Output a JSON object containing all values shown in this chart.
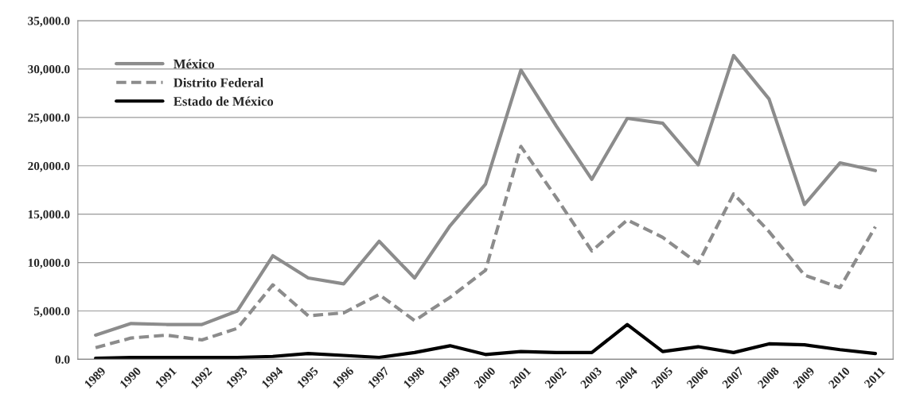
{
  "chart_data": {
    "type": "line",
    "categories": [
      "1989",
      "1990",
      "1991",
      "1992",
      "1993",
      "1994",
      "1995",
      "1996",
      "1997",
      "1998",
      "1999",
      "2000",
      "2001",
      "2002",
      "2003",
      "2004",
      "2005",
      "2006",
      "2007",
      "2008",
      "2009",
      "2010",
      "2011"
    ],
    "series": [
      {
        "name": "México",
        "color": "#8c8c8c",
        "line_style": "solid",
        "values": [
          2500,
          3700,
          3600,
          3600,
          5000,
          10700,
          8400,
          7800,
          12200,
          8400,
          13800,
          18100,
          29900,
          24100,
          18600,
          24900,
          24400,
          20100,
          31400,
          26900,
          16000,
          20300,
          19500
        ]
      },
      {
        "name": "Distrito Federal",
        "color": "#8c8c8c",
        "line_style": "dashed",
        "values": [
          1200,
          2200,
          2500,
          2000,
          3200,
          7700,
          4500,
          4800,
          6700,
          4000,
          6400,
          9200,
          22000,
          16700,
          11200,
          14400,
          12600,
          9900,
          17100,
          13200,
          8700,
          7400,
          13700
        ]
      },
      {
        "name": "Estado de México",
        "color": "#000000",
        "line_style": "solid",
        "values": [
          100,
          200,
          200,
          200,
          200,
          300,
          600,
          400,
          200,
          700,
          1400,
          500,
          800,
          700,
          700,
          3600,
          800,
          1300,
          700,
          1600,
          1500,
          1000,
          600
        ]
      }
    ],
    "ylim": [
      0,
      35000
    ],
    "yticks": [
      {
        "value": 0,
        "label": "0.0"
      },
      {
        "value": 5000,
        "label": "5,000.0"
      },
      {
        "value": 10000,
        "label": "10,000.0"
      },
      {
        "value": 15000,
        "label": "15,000.0"
      },
      {
        "value": 20000,
        "label": "20,000.0"
      },
      {
        "value": 25000,
        "label": "25,000.0"
      },
      {
        "value": 30000,
        "label": "30,000.0"
      },
      {
        "value": 35000,
        "label": "35,000.0"
      }
    ],
    "grid": "y",
    "legend": "top left",
    "marker": "none"
  }
}
